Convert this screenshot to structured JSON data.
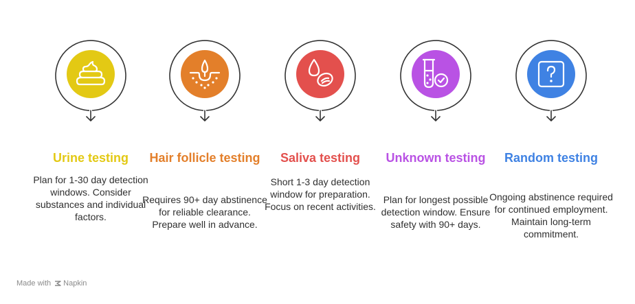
{
  "steps": [
    {
      "title": "Urine testing",
      "description": "Plan for 1-30 day detection windows. Consider substances and individual factors.",
      "color": "#e3c914",
      "icon": "poop-icon"
    },
    {
      "title": "Hair follicle testing",
      "description": "Requires 90+ day abstinence for reliable clearance. Prepare well in advance.",
      "color": "#e37f2a",
      "icon": "hair-follicle-icon"
    },
    {
      "title": "Saliva testing",
      "description": "Short 1-3 day detection window for preparation. Focus on recent activities.",
      "color": "#e3504d",
      "icon": "saliva-drop-icon"
    },
    {
      "title": "Unknown testing",
      "description": "Plan for longest possible detection window. Ensure safety with 90+ days.",
      "color": "#b952e4",
      "icon": "test-tube-check-icon"
    },
    {
      "title": "Random testing",
      "description": "Ongoing abstinence required for continued employment. Maintain long-term commitment.",
      "color": "#3f82e3",
      "icon": "question-box-icon"
    }
  ],
  "footer": {
    "made_with": "Made with",
    "brand": "Napkin"
  }
}
